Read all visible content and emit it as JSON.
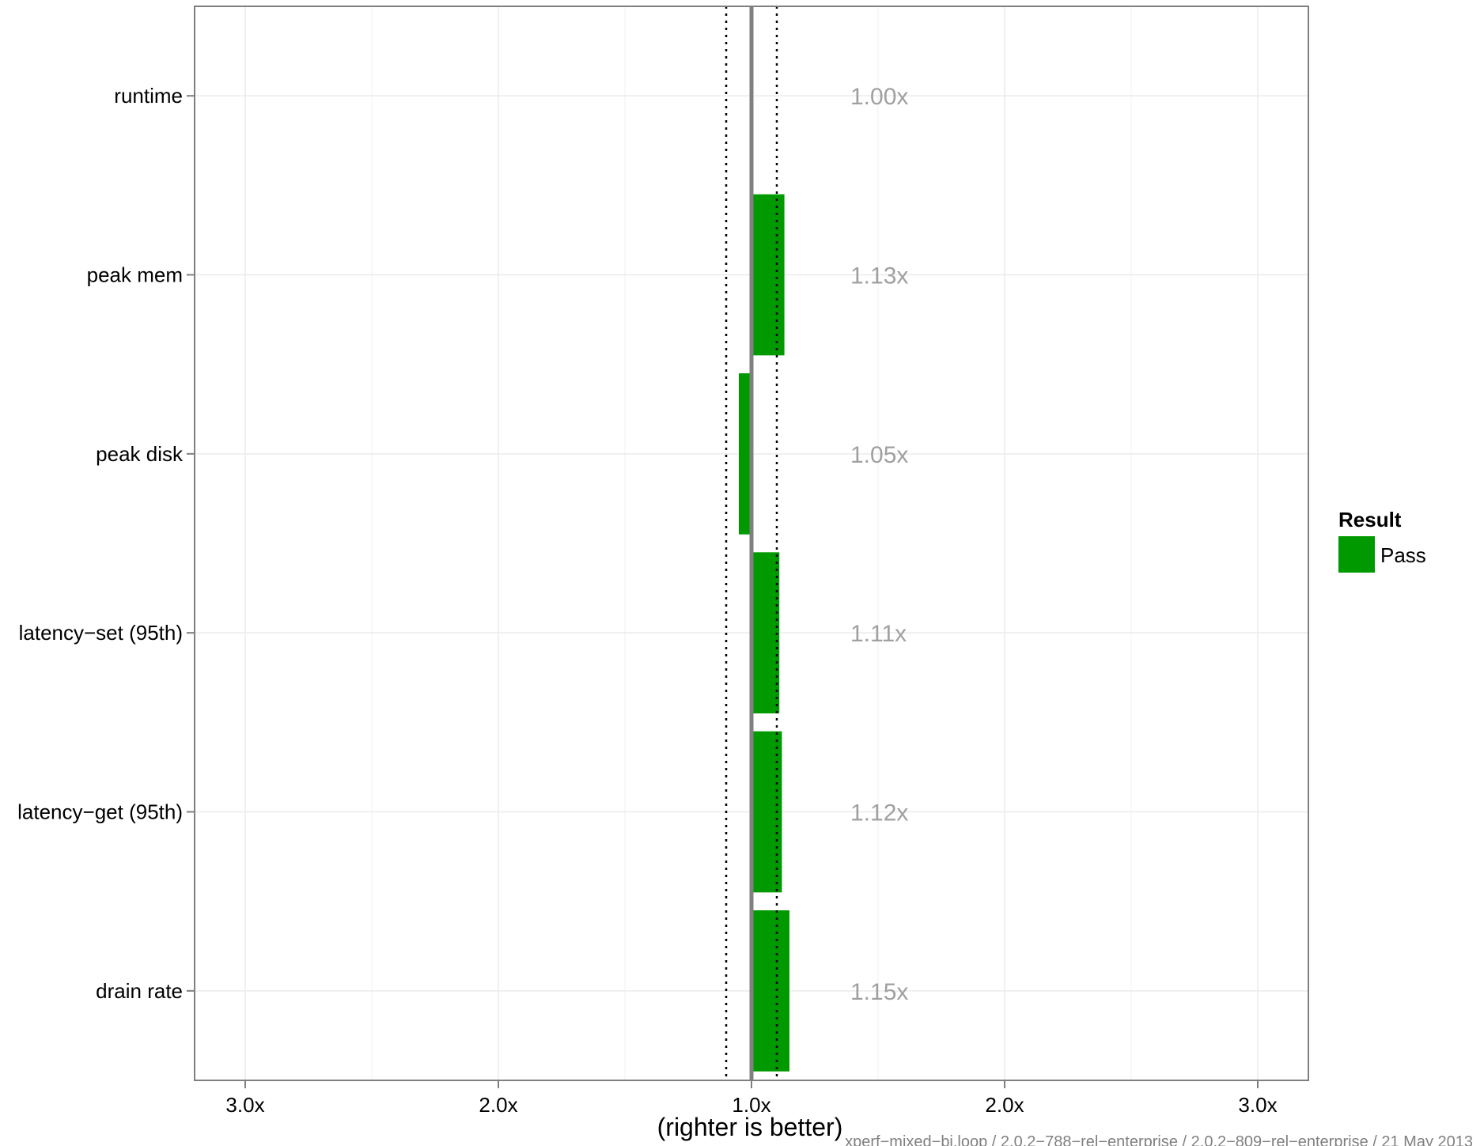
{
  "chart_data": {
    "type": "bar",
    "orientation": "horizontal",
    "categories": [
      "runtime",
      "peak mem",
      "peak disk",
      "latency−set (95th)",
      "latency−get (95th)",
      "drain rate"
    ],
    "values": [
      1.0,
      1.13,
      -1.05,
      1.11,
      1.12,
      1.15
    ],
    "value_labels": [
      "1.00x",
      "1.13x",
      "1.05x",
      "1.11x",
      "1.12x",
      "1.15x"
    ],
    "xlabel": "(righter is better)",
    "x_ticks": [
      {
        "value": -3.0,
        "label": "3.0x"
      },
      {
        "value": -2.0,
        "label": "2.0x"
      },
      {
        "value": 1.0,
        "label": "1.0x"
      },
      {
        "value": 2.0,
        "label": "2.0x"
      },
      {
        "value": 3.0,
        "label": "3.0x"
      }
    ],
    "xlim": [
      -3.2,
      3.2
    ],
    "threshold_lines": [
      -1.1,
      1.1
    ],
    "bar_color": "#009900",
    "grid": true,
    "legend": {
      "title": "Result",
      "entries": [
        {
          "label": "Pass",
          "color": "#009900"
        }
      ],
      "position": "right"
    },
    "footer": "xperf−mixed−bi.loop / 2.0.2−788−rel−enterprise / 2.0.2−809−rel−enterprise / 21 May 2013"
  }
}
